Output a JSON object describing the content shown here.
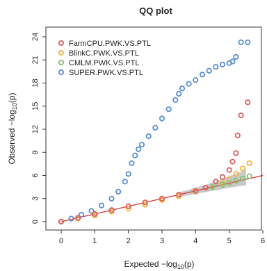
{
  "colors": {
    "farmcpu": "#e06060",
    "blinkc": "#f0b840",
    "cmlm": "#88c070",
    "super": "#5a8fd0",
    "reference_line": "#e03a3a",
    "confidence_band": "#bdbdbd"
  },
  "chart_data": {
    "type": "scatter",
    "title": "QQ plot",
    "xlabel": {
      "main": "Expected  −log",
      "sub": "10",
      "tail": "(p)"
    },
    "ylabel": {
      "main": "Observed  −log",
      "sub": "10",
      "tail": "(p)"
    },
    "xlim": [
      0,
      6
    ],
    "ylim": [
      0,
      24
    ],
    "x_ticks": [
      0,
      1,
      2,
      3,
      4,
      5,
      6
    ],
    "y_ticks": [
      0,
      3,
      6,
      9,
      12,
      15,
      18,
      21,
      24
    ],
    "reference_line": {
      "x": [
        0,
        6
      ],
      "y": [
        0,
        6
      ]
    },
    "confidence_band": {
      "x": [
        3.5,
        4.0,
        4.5,
        5.0,
        5.3,
        5.5
      ],
      "lower": [
        3.2,
        3.6,
        4.0,
        4.4,
        4.6,
        4.7
      ],
      "upper": [
        3.8,
        4.4,
        5.1,
        5.9,
        6.4,
        6.8
      ]
    },
    "legend": {
      "position": "top-left"
    },
    "series": [
      {
        "name": "FarmCPU.PWK.VS.PTL",
        "color_key": "farmcpu",
        "x": [
          0.0,
          0.5,
          1.0,
          1.5,
          2.0,
          2.5,
          3.0,
          3.5,
          4.0,
          4.3,
          4.6,
          4.8,
          5.0,
          5.1,
          5.2,
          5.25,
          5.35,
          5.55
        ],
        "y": [
          0.0,
          0.5,
          1.0,
          1.5,
          2.0,
          2.5,
          3.0,
          3.5,
          4.0,
          4.4,
          5.2,
          5.8,
          6.7,
          7.8,
          8.9,
          11.2,
          13.8,
          15.5
        ]
      },
      {
        "name": "BlinkC.PWK.VS.PTL",
        "color_key": "blinkc",
        "x": [
          0.0,
          0.5,
          1.0,
          1.5,
          2.0,
          2.5,
          3.0,
          3.5,
          4.0,
          4.5,
          4.8,
          5.0,
          5.2,
          5.4,
          5.6
        ],
        "y": [
          0.0,
          0.4,
          0.8,
          1.3,
          1.7,
          2.2,
          2.8,
          3.3,
          3.9,
          4.5,
          5.0,
          5.5,
          6.2,
          6.9,
          7.6
        ]
      },
      {
        "name": "CMLM.PWK.VS.PTL",
        "color_key": "cmlm",
        "x": [
          0.0,
          0.5,
          1.0,
          1.5,
          2.0,
          2.5,
          3.0,
          3.5,
          4.0,
          4.5,
          4.8,
          5.0,
          5.2,
          5.4,
          5.6
        ],
        "y": [
          0.0,
          0.5,
          1.0,
          1.5,
          2.0,
          2.5,
          3.0,
          3.5,
          4.0,
          4.5,
          4.8,
          5.0,
          5.3,
          5.6,
          5.9
        ]
      },
      {
        "name": "SUPER.PWK.VS.PTL",
        "color_key": "super",
        "x": [
          0.0,
          0.3,
          0.6,
          0.9,
          1.2,
          1.5,
          1.7,
          1.9,
          2.0,
          2.1,
          2.2,
          2.3,
          2.4,
          2.6,
          2.8,
          3.0,
          3.2,
          3.4,
          3.5,
          3.6,
          3.8,
          4.0,
          4.2,
          4.4,
          4.6,
          4.8,
          5.0,
          5.1,
          5.2,
          5.35,
          5.55
        ],
        "y": [
          0.0,
          0.4,
          0.9,
          1.4,
          2.1,
          3.0,
          3.9,
          5.2,
          6.2,
          7.6,
          8.6,
          9.4,
          10.0,
          11.1,
          12.2,
          13.4,
          14.6,
          15.8,
          16.6,
          17.3,
          17.9,
          18.4,
          19.1,
          19.6,
          20.1,
          20.4,
          20.6,
          20.8,
          21.4,
          23.3,
          23.3
        ]
      }
    ]
  }
}
